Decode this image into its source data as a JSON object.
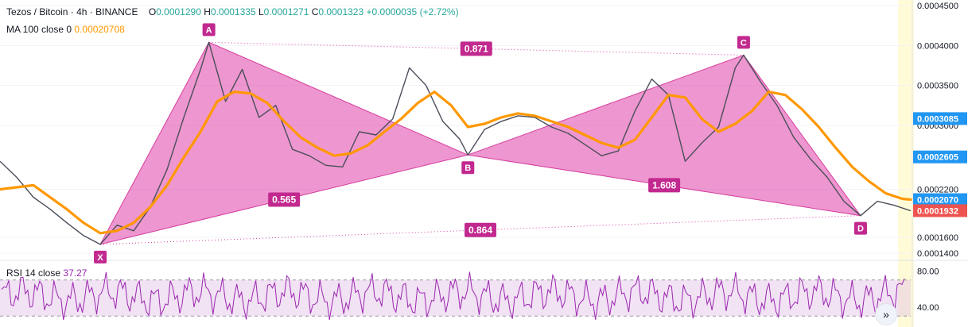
{
  "legend": {
    "symbol": "Tezos / Bitcoin",
    "interval": "4h",
    "exchange": "BINANCE",
    "open_label": "O",
    "open": "0.0001290",
    "high_label": "H",
    "high": "0.0001335",
    "low_label": "L",
    "low": "0.0001271",
    "close_label": "C",
    "close": "0.0001323",
    "change": "+0.0000035 (+2.72%)",
    "ma_label": "MA 100 close 0",
    "ma_value": "0.00020708",
    "rsi_label": "RSI 14 close",
    "rsi_value": "37.27"
  },
  "colors": {
    "pattern_fill": "#e040a8",
    "pattern_label": "#c2298f",
    "ma_line": "#ff9800",
    "candle_up": "#26a69a",
    "candle_down": "#ef5350",
    "rsi_line": "#9c27b0",
    "rsi_band": "#e1bee7",
    "price_tag_blue": "#2196f3",
    "price_tag_red": "#ef5350"
  },
  "chart_data": {
    "type": "line",
    "price_axis": {
      "ticks": [
        "0.0004500",
        "0.0004000",
        "0.0003500",
        "0.0003000",
        "0.0002200",
        "0.0001600",
        "0.0001400"
      ],
      "tick_values": [
        0.00045,
        0.0004,
        0.00035,
        0.0003,
        0.00022,
        0.00016,
        0.00014
      ],
      "ylim": [
        0.000133,
        0.000457
      ]
    },
    "price_tags": [
      {
        "label": "0.0003085",
        "value": 0.0003085,
        "color": "#2196f3"
      },
      {
        "label": "0.0002605",
        "value": 0.0002605,
        "color": "#2196f3"
      },
      {
        "label": "0.0002070",
        "value": 0.000207,
        "color": "#2196f3"
      },
      {
        "label": "0.0001932",
        "value": 0.0001932,
        "color": "#ef5350"
      }
    ],
    "harmonic_points": [
      {
        "name": "X",
        "x": 12,
        "y": 0.000151
      },
      {
        "name": "A",
        "x": 25,
        "y": 0.000404
      },
      {
        "name": "B",
        "x": 56,
        "y": 0.000263
      },
      {
        "name": "C",
        "x": 89,
        "y": 0.000388
      },
      {
        "name": "D",
        "x": 103,
        "y": 0.000187
      }
    ],
    "ratios": [
      {
        "label": "0.871",
        "from": "A",
        "to": "C"
      },
      {
        "label": "0.565",
        "from": "X",
        "to": "B"
      },
      {
        "label": "1.608",
        "from": "B",
        "to": "D"
      },
      {
        "label": "0.864",
        "from": "X",
        "to": "D"
      }
    ],
    "price_series": {
      "x": [
        0,
        2,
        4,
        6,
        8,
        10,
        12,
        14,
        16,
        18,
        20,
        22,
        24,
        25,
        27,
        29,
        31,
        33,
        35,
        37,
        39,
        41,
        43,
        45,
        47,
        49,
        51,
        53,
        55,
        56,
        58,
        60,
        62,
        64,
        66,
        68,
        70,
        72,
        74,
        76,
        78,
        80,
        82,
        84,
        86,
        88,
        89,
        91,
        93,
        95,
        97,
        99,
        101,
        103,
        105,
        107,
        109
      ],
      "y": [
        0.000255,
        0.000235,
        0.00021,
        0.000195,
        0.000178,
        0.000162,
        0.000151,
        0.000175,
        0.000168,
        0.000198,
        0.000245,
        0.00031,
        0.00037,
        0.000404,
        0.00033,
        0.00037,
        0.00031,
        0.000325,
        0.00027,
        0.000262,
        0.00025,
        0.000248,
        0.000292,
        0.000288,
        0.000308,
        0.000372,
        0.00035,
        0.000305,
        0.000283,
        0.000263,
        0.000295,
        0.000305,
        0.000312,
        0.00031,
        0.000298,
        0.00029,
        0.000276,
        0.000262,
        0.000268,
        0.000318,
        0.000358,
        0.000338,
        0.000255,
        0.000278,
        0.000298,
        0.000372,
        0.000388,
        0.000355,
        0.000325,
        0.000285,
        0.000258,
        0.000235,
        0.000205,
        0.000187,
        0.000205,
        0.0002,
        0.000193
      ]
    },
    "ma_series": {
      "name": "MA 100 close 0",
      "x": [
        0,
        4,
        8,
        10,
        12,
        14,
        16,
        18,
        20,
        22,
        24,
        26,
        28,
        30,
        32,
        34,
        36,
        38,
        40,
        42,
        44,
        46,
        48,
        50,
        52,
        54,
        56,
        58,
        60,
        62,
        64,
        66,
        68,
        70,
        72,
        74,
        76,
        78,
        80,
        82,
        84,
        86,
        88,
        90,
        92,
        94,
        96,
        98,
        100,
        102,
        104,
        106,
        108,
        109
      ],
      "y": [
        0.00022,
        0.000225,
        0.000195,
        0.000178,
        0.000165,
        0.000168,
        0.000178,
        0.000198,
        0.000225,
        0.00026,
        0.000292,
        0.00033,
        0.000342,
        0.00034,
        0.000328,
        0.000305,
        0.000285,
        0.000272,
        0.000262,
        0.000265,
        0.000275,
        0.000292,
        0.000308,
        0.000328,
        0.000342,
        0.000325,
        0.000298,
        0.000302,
        0.00031,
        0.000315,
        0.000312,
        0.000305,
        0.000298,
        0.000288,
        0.000278,
        0.000272,
        0.000282,
        0.00031,
        0.000338,
        0.000335,
        0.000308,
        0.000292,
        0.000302,
        0.000318,
        0.000342,
        0.000338,
        0.00032,
        0.000298,
        0.000272,
        0.000248,
        0.00023,
        0.000215,
        0.000208,
        0.000207
      ]
    },
    "rsi": {
      "ticks": [
        "80.00",
        "40.00"
      ],
      "tick_values": [
        80,
        40
      ],
      "band": [
        30,
        70
      ],
      "ylim": [
        25,
        90
      ],
      "series_name": "RSI 14 close"
    },
    "x_range": [
      0,
      109
    ],
    "highlight_range": [
      107.5,
      109
    ]
  }
}
